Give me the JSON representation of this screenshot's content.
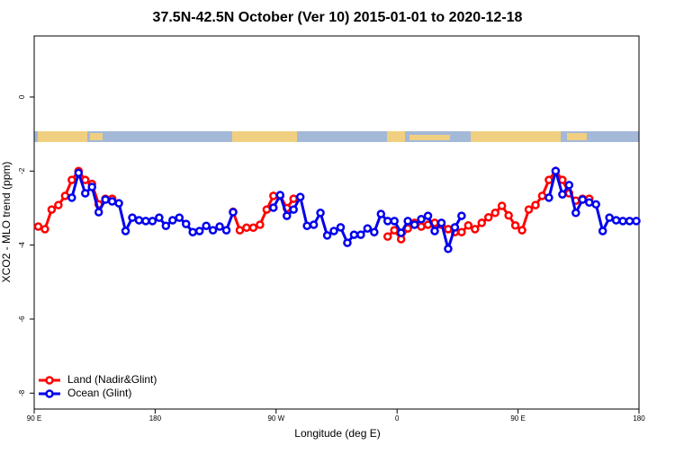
{
  "chart_data": {
    "type": "line",
    "title": "37.5N-42.5N October (Ver 10)   2015-01-01 to 2020-12-18",
    "x_label": "Longitude (deg E)",
    "y_label": "XCO2 - MLO trend (ppm)",
    "x": [
      93,
      98,
      103,
      108,
      113,
      118,
      123,
      128,
      133,
      138,
      143,
      148,
      153,
      158,
      163,
      168,
      173,
      178,
      183,
      188,
      193,
      198,
      203,
      208,
      213,
      218,
      223,
      228,
      233,
      238,
      243,
      248,
      253,
      258,
      263,
      268,
      273,
      278,
      283,
      288,
      293,
      298,
      303,
      308,
      313,
      318,
      323,
      328,
      333,
      338,
      343,
      348,
      353,
      358,
      363,
      368,
      373,
      378,
      383,
      388,
      393,
      398,
      403,
      408,
      413,
      418,
      423,
      428,
      433,
      438,
      443,
      448,
      453,
      458,
      463,
      468,
      473,
      478,
      483,
      488,
      493,
      498,
      503,
      508,
      513,
      518,
      523,
      528,
      533,
      538
    ],
    "series": [
      {
        "name": "Land (Nadir&Glint)",
        "color": "#ff0000",
        "values": [
          -3.5,
          -3.57,
          -3.04,
          -2.92,
          -2.67,
          -2.24,
          -2.0,
          -2.24,
          -2.35,
          -2.9,
          -2.75,
          -2.75,
          null,
          null,
          null,
          null,
          null,
          null,
          null,
          null,
          null,
          null,
          null,
          null,
          null,
          null,
          null,
          null,
          null,
          -3.1,
          -3.6,
          -3.53,
          -3.53,
          -3.45,
          -3.04,
          -2.67,
          -2.67,
          -3.0,
          -2.75,
          null,
          null,
          null,
          null,
          null,
          null,
          null,
          null,
          null,
          null,
          null,
          null,
          null,
          -3.77,
          -3.6,
          -3.84,
          -3.55,
          -3.4,
          -3.5,
          -3.45,
          -3.4,
          -3.45,
          -3.57,
          -3.65,
          -3.65,
          -3.47,
          -3.57,
          -3.4,
          -3.25,
          -3.13,
          -2.94,
          -3.2,
          -3.47,
          -3.6,
          -3.04,
          -2.92,
          -2.67,
          -2.24,
          -2.0,
          -2.24,
          -2.6,
          -2.8,
          -2.75,
          -2.75,
          null,
          null,
          null,
          null,
          null,
          null,
          null
        ]
      },
      {
        "name": "Ocean (Glint)",
        "color": "#0000ee",
        "values": [
          null,
          null,
          null,
          null,
          null,
          -2.72,
          -2.05,
          -2.6,
          -2.43,
          -3.11,
          -2.77,
          -2.82,
          -2.87,
          -3.62,
          -3.26,
          -3.33,
          -3.35,
          -3.35,
          -3.26,
          -3.48,
          -3.33,
          -3.26,
          -3.43,
          -3.65,
          -3.62,
          -3.48,
          -3.6,
          -3.5,
          -3.6,
          -3.11,
          null,
          null,
          null,
          null,
          null,
          -2.99,
          -2.65,
          -3.21,
          -3.04,
          -2.7,
          -3.48,
          -3.45,
          -3.13,
          -3.74,
          -3.62,
          -3.52,
          -3.94,
          -3.72,
          -3.72,
          -3.55,
          -3.65,
          -3.16,
          -3.35,
          -3.35,
          -3.67,
          -3.35,
          -3.45,
          -3.3,
          -3.21,
          -3.62,
          -3.4,
          -4.1,
          -3.52,
          -3.21,
          null,
          null,
          null,
          null,
          null,
          null,
          null,
          null,
          null,
          null,
          null,
          null,
          -2.72,
          -2.0,
          -2.63,
          -2.38,
          -3.13,
          -2.77,
          -2.85,
          -2.9,
          -3.62,
          -3.26,
          -3.33,
          -3.35,
          -3.35,
          -3.35
        ]
      }
    ],
    "xlim": [
      90,
      540
    ],
    "xticks": [
      {
        "value": 90,
        "label": "90 E"
      },
      180,
      {
        "value": 270,
        "label": "90 W"
      },
      {
        "value": 360,
        "label": "0"
      },
      {
        "value": 450,
        "label": "90 E"
      },
      {
        "value": 540,
        "label": "180"
      }
    ],
    "ylim": [
      -8.43,
      1.65
    ],
    "yticks": [
      0,
      -2,
      -4,
      -6,
      -8
    ],
    "legend": "bottom-left"
  }
}
